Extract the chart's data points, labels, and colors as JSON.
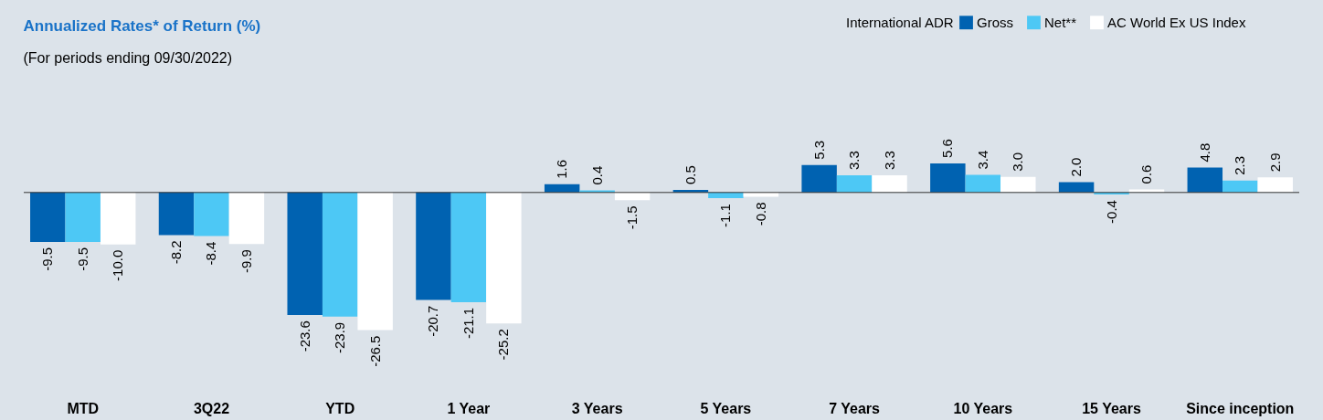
{
  "chart_data": {
    "type": "bar",
    "title": "Annualized Rates* of Return (%)",
    "subtitle": "(For periods ending 09/30/2022)",
    "legend_title": "International ADR",
    "legend": "top right",
    "grid": false,
    "categories": [
      "MTD",
      "3Q22",
      "YTD",
      "1 Year",
      "3 Years",
      "5 Years",
      "7 Years",
      "10 Years",
      "15 Years",
      "Since inception"
    ],
    "series": [
      {
        "name": "Gross",
        "color": "#0062b1",
        "values": [
          -9.5,
          -8.2,
          -23.6,
          -20.7,
          1.6,
          0.5,
          5.3,
          5.6,
          2.0,
          4.8
        ],
        "value_labels": [
          "-9.5",
          "-8.2",
          "-23.6",
          "-20.7",
          "1.6",
          "0.5",
          "5.3",
          "5.6",
          "2.0",
          "4.8"
        ]
      },
      {
        "name": "Net**",
        "color": "#4dc8f5",
        "values": [
          -9.5,
          -8.4,
          -23.9,
          -21.1,
          0.4,
          -1.1,
          3.3,
          3.4,
          -0.4,
          2.3
        ],
        "value_labels": [
          "-9.5",
          "-8.4",
          "-23.9",
          "-21.1",
          "0.4",
          "-1.1",
          "3.3",
          "3.4",
          "-0.4",
          "2.3"
        ]
      },
      {
        "name": "AC World Ex US Index",
        "color": "#ffffff",
        "values": [
          -10.0,
          -9.9,
          -26.5,
          -25.2,
          -1.5,
          -0.8,
          3.3,
          3.0,
          0.6,
          2.9
        ],
        "value_labels": [
          "-10.0",
          "-9.9",
          "-26.5",
          "-25.2",
          "-1.5",
          "-0.8",
          "3.3",
          "3.0",
          "0.6",
          "2.9"
        ]
      }
    ]
  }
}
